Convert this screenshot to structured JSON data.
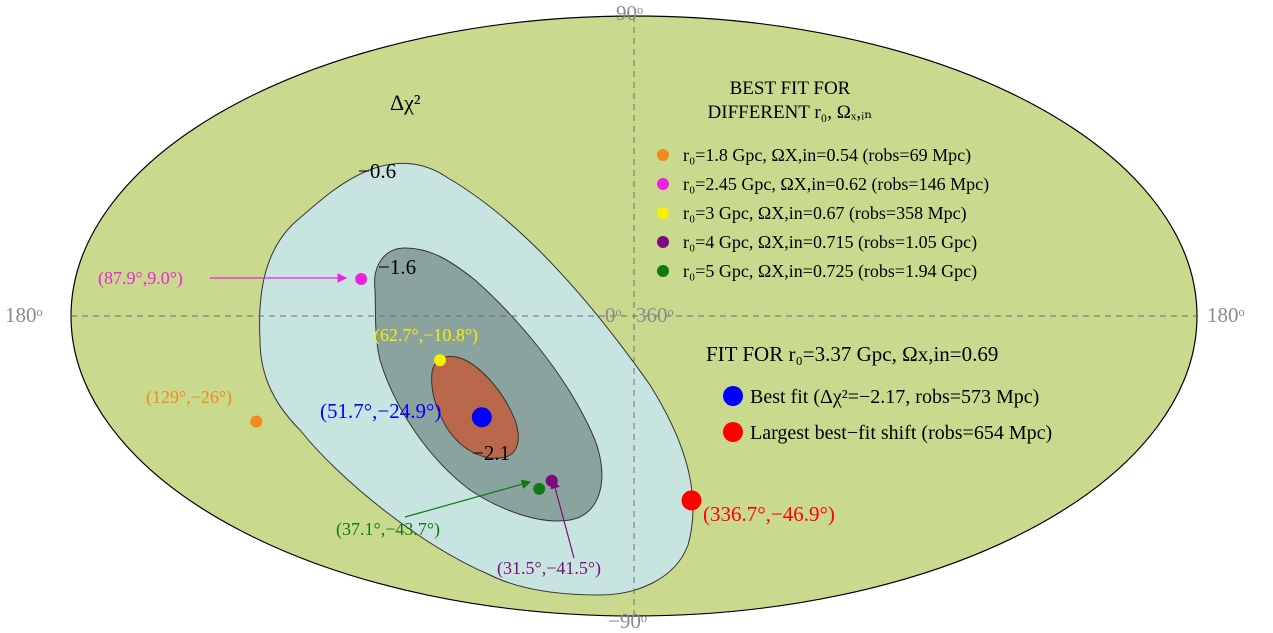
{
  "chart_data": {
    "type": "scatter",
    "projection": "mollweide sky map",
    "title": "",
    "colorbar_label": "Δχ²",
    "axis_labels": {
      "top": "90ᵒ",
      "bottom": "−90ᵒ",
      "left": "180ᵒ",
      "right": "180ᵒ",
      "center_left": "0ᵒ",
      "center_right": "360ᵒ"
    },
    "contour_levels": [
      "−0.6",
      "−1.6",
      "−2.1"
    ],
    "contour_colors": {
      "outer": "#c8e4e1",
      "middle": "#8ba39f",
      "inner": "#b9684b"
    },
    "background_color": "#c9d98e",
    "points": [
      {
        "lon": 87.9,
        "lat": 9.0,
        "label": "(87.9°,9.0°)",
        "color": "#ee22dd",
        "size": "small",
        "arrow": true
      },
      {
        "lon": 62.7,
        "lat": -10.8,
        "label": "(62.7°,−10.8°)",
        "color": "#f7f100",
        "size": "small",
        "arrow": false
      },
      {
        "lon": 129,
        "lat": -26,
        "label": "(129°,−26°)",
        "color": "#f08a1e",
        "size": "small",
        "arrow": false
      },
      {
        "lon": 51.7,
        "lat": -24.9,
        "label": "(51.7°,−24.9°)",
        "color": "#0000ff",
        "size": "large",
        "arrow": false
      },
      {
        "lon": 37.1,
        "lat": -43.7,
        "label": "(37.1°,−43.7°)",
        "color": "#0f7a12",
        "size": "small",
        "arrow": true
      },
      {
        "lon": 31.5,
        "lat": -41.5,
        "label": "(31.5°,−41.5°)",
        "color": "#7d0b7d",
        "size": "small",
        "arrow": true
      },
      {
        "lon": 336.7,
        "lat": -46.9,
        "label": "(336.7°,−46.9°)",
        "color": "#ff0000",
        "size": "large",
        "arrow": false
      }
    ],
    "legend_different": {
      "title_line1": "BEST FIT FOR",
      "title_line2": "DIFFERENT r₀, Ωₓ,ᵢₙ",
      "items": [
        {
          "color": "#f08a1e",
          "text": "r₀=1.8 Gpc, ΩX,in=0.54  (robs=69 Mpc)"
        },
        {
          "color": "#ee22dd",
          "text": "r₀=2.45 Gpc, ΩX,in=0.62  (robs=146 Mpc)"
        },
        {
          "color": "#f7f100",
          "text": "r₀=3 Gpc, ΩX,in=0.67  (robs=358 Mpc)"
        },
        {
          "color": "#7d0b7d",
          "text": "r₀=4 Gpc, ΩX,in=0.715  (robs=1.05 Gpc)"
        },
        {
          "color": "#0f7a12",
          "text": "r₀=5 Gpc, ΩX,in=0.725  (robs=1.94 Gpc)"
        }
      ]
    },
    "legend_fit": {
      "title": "FIT FOR r₀=3.37 Gpc, Ωx,in=0.69",
      "items": [
        {
          "color": "#0000ff",
          "text": "Best fit (Δχ²=−2.17, robs=573 Mpc)"
        },
        {
          "color": "#ff0000",
          "text": "Largest best−fit shift (robs=654 Mpc)"
        }
      ]
    }
  }
}
